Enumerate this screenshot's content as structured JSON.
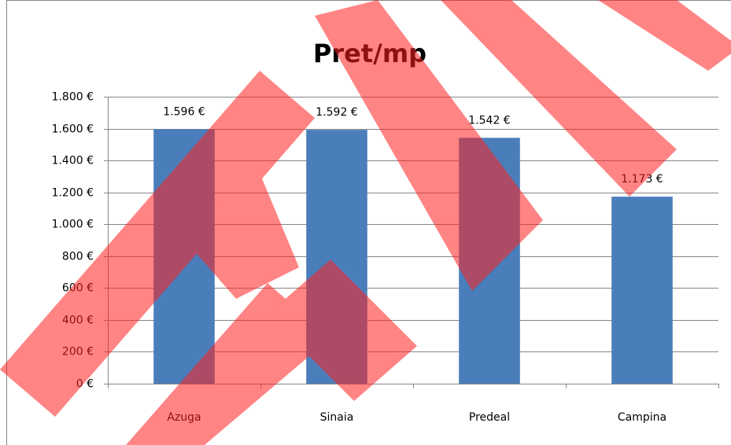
{
  "chart_data": {
    "type": "bar",
    "title": "Pret/mp",
    "categories": [
      "Azuga",
      "Sinaia",
      "Predeal",
      "Campina"
    ],
    "values": [
      1596,
      1592,
      1542,
      1173
    ],
    "value_labels": [
      "1.596 €",
      "1.592 €",
      "1.542 €",
      "1.173 €"
    ],
    "color": "#4a7ebb",
    "ylim": [
      0,
      1800
    ],
    "yticks": [
      {
        "value": 0,
        "label": "0 €"
      },
      {
        "value": 200,
        "label": "200 €"
      },
      {
        "value": 400,
        "label": "400 €"
      },
      {
        "value": 600,
        "label": "600 €"
      },
      {
        "value": 800,
        "label": "800 €"
      },
      {
        "value": 1000,
        "label": "1.000 €"
      },
      {
        "value": 1200,
        "label": "1.200 €"
      },
      {
        "value": 1400,
        "label": "1.400 €"
      },
      {
        "value": 1600,
        "label": "1.600 €"
      },
      {
        "value": 1800,
        "label": "1.800 €"
      }
    ],
    "grid": true
  }
}
